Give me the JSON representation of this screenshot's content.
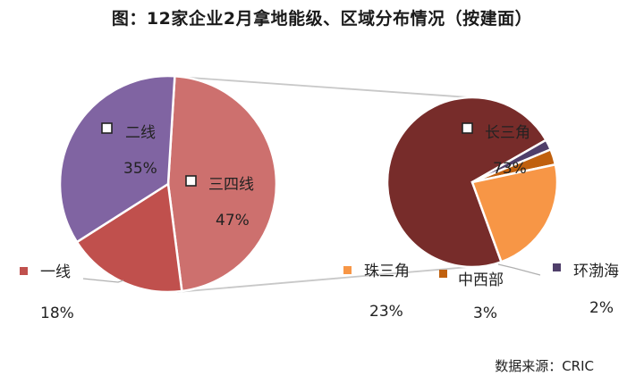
{
  "title": "图：12家企业2月拿地能级、区域分布情况（按建面）",
  "source": "数据来源：CRIC",
  "chart_data": [
    {
      "type": "pie",
      "slices": [
        {
          "label": "三四线",
          "value": 47,
          "value_text": "47%",
          "color": "#CD706E"
        },
        {
          "label": "一线",
          "value": 18,
          "value_text": "18%",
          "color": "#C0504D"
        },
        {
          "label": "二线",
          "value": 35,
          "value_text": "35%",
          "color": "#8064A2"
        }
      ]
    },
    {
      "type": "pie",
      "slices": [
        {
          "label": "长三角",
          "value": 73,
          "value_text": "73%",
          "color": "#772C2A"
        },
        {
          "label": "环渤海",
          "value": 2,
          "value_text": "2%",
          "color": "#4F3F6A"
        },
        {
          "label": "中西部",
          "value": 3,
          "value_text": "3%",
          "color": "#C0600E"
        },
        {
          "label": "珠三角",
          "value": 23,
          "value_text": "23%",
          "color": "#F79646"
        }
      ]
    }
  ]
}
